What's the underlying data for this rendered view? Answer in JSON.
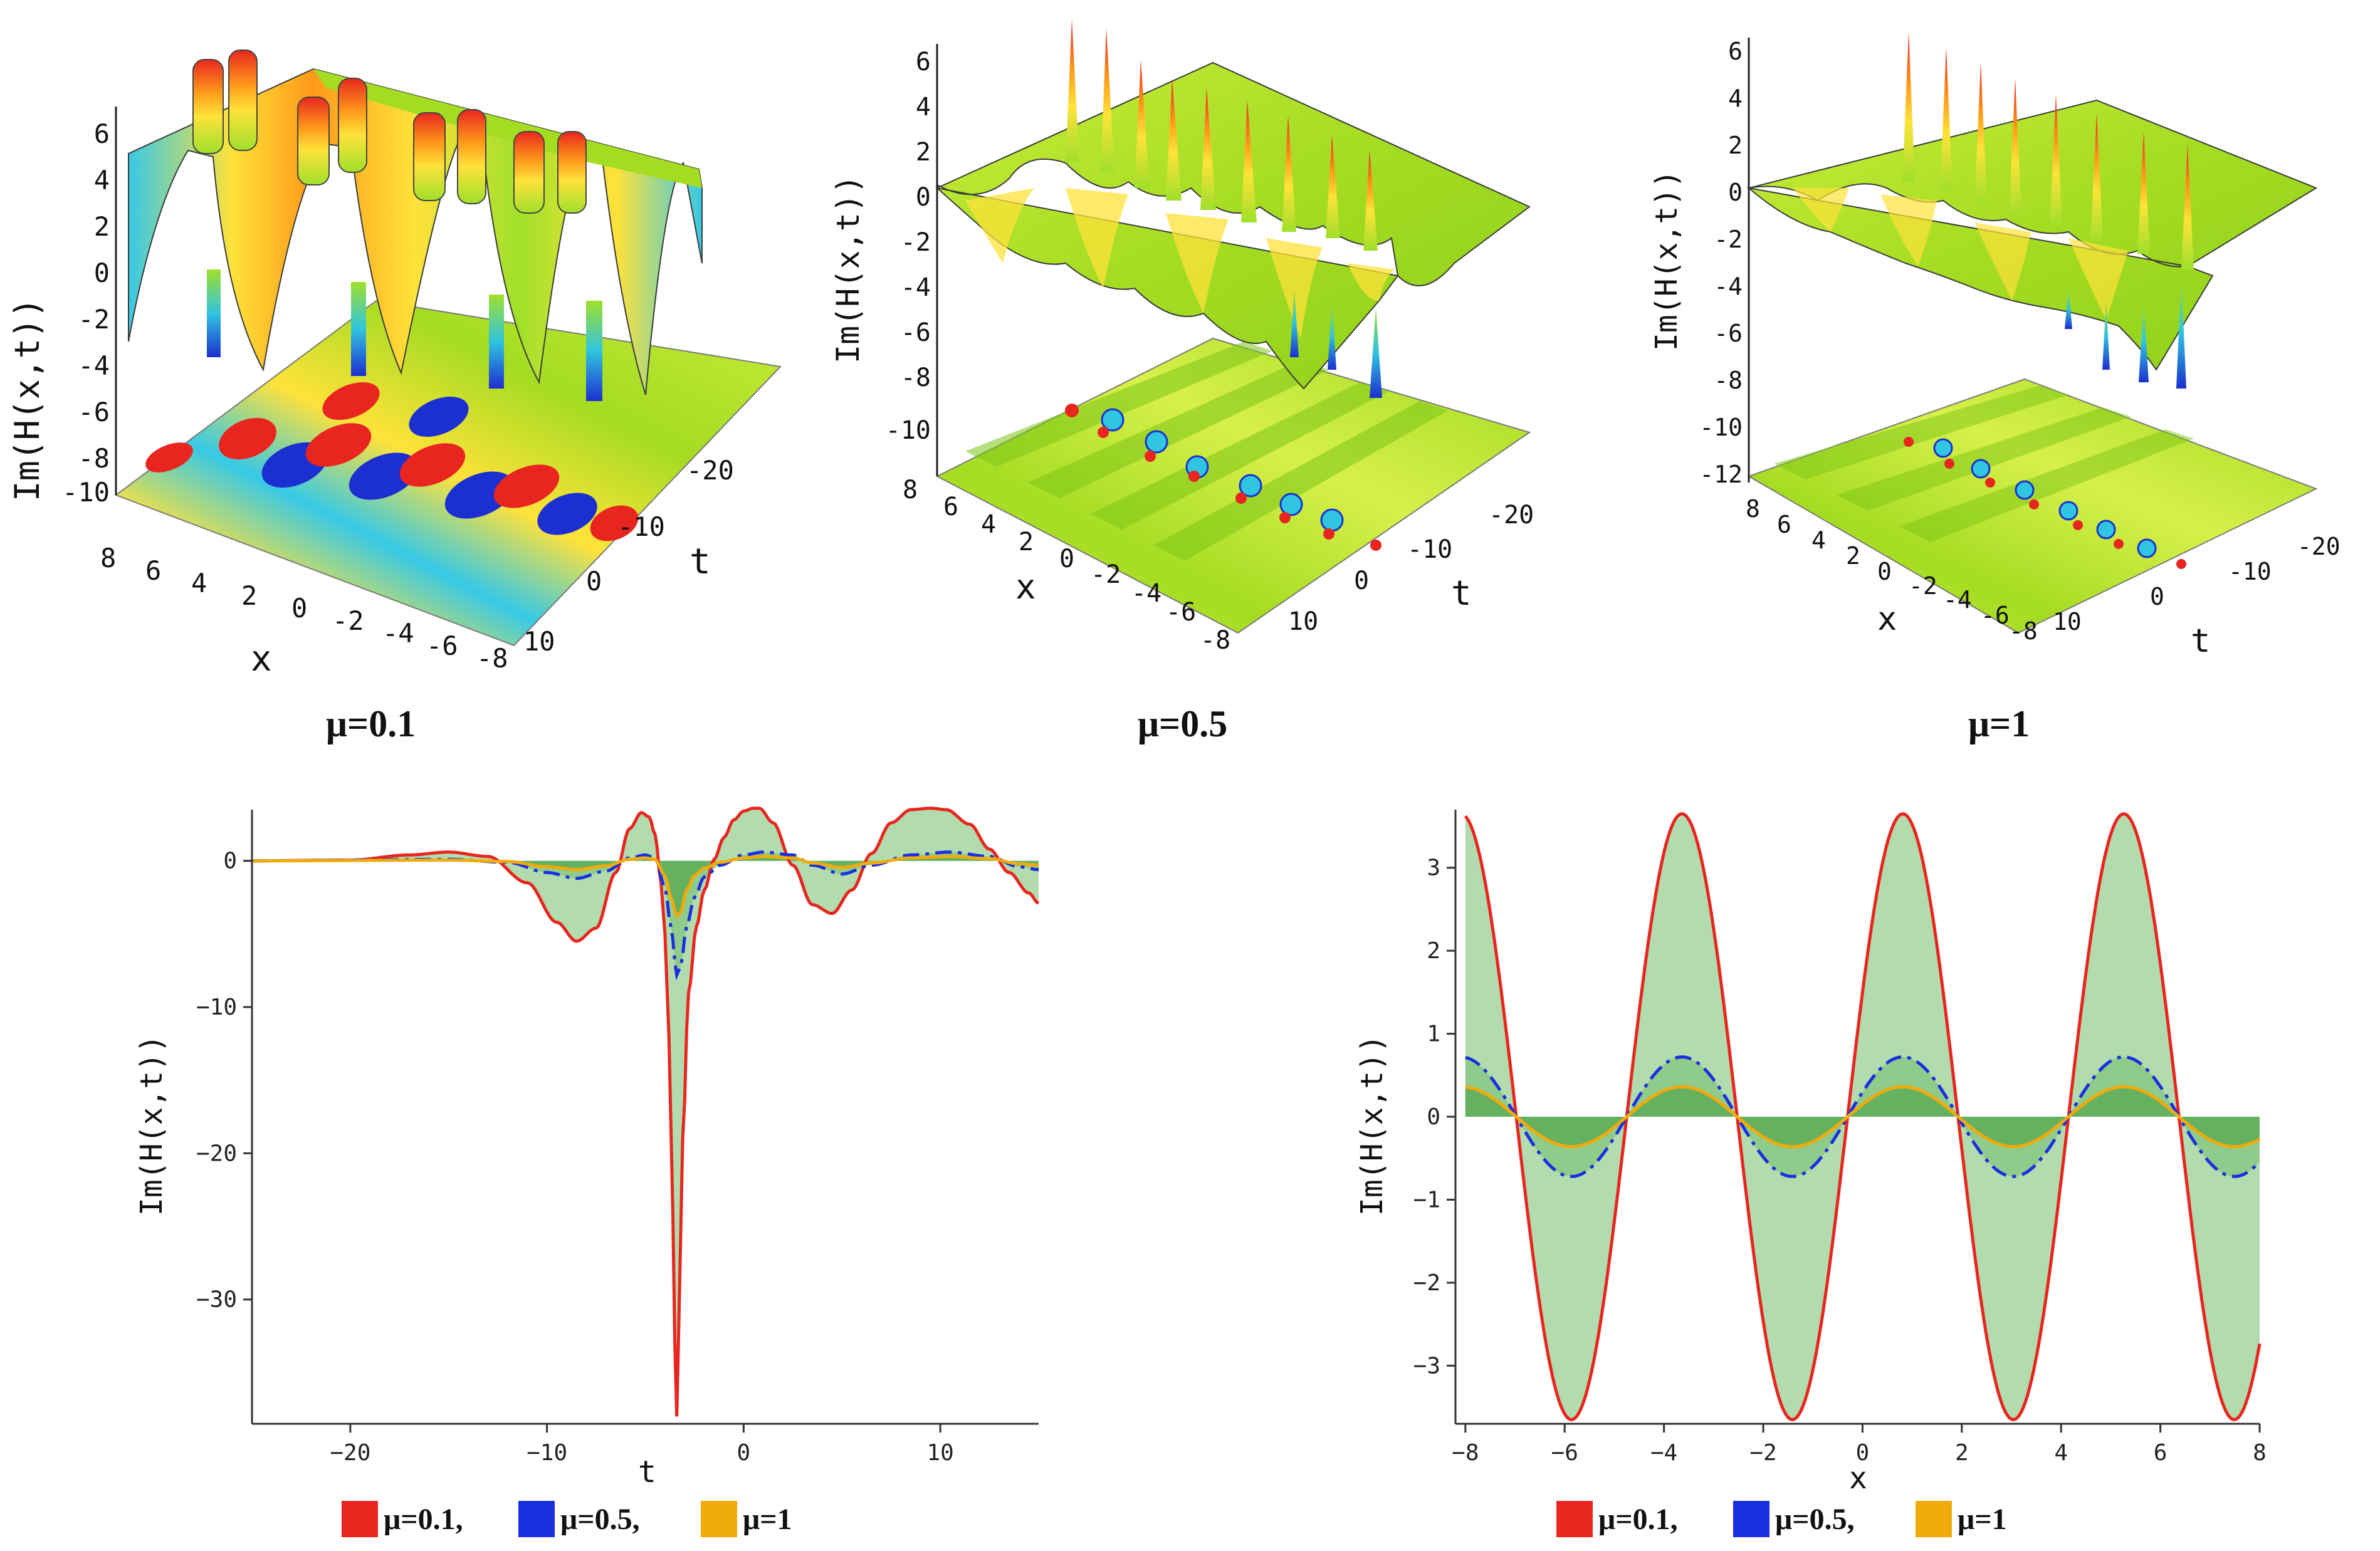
{
  "chart_data": [
    {
      "type": "surface3d",
      "id": "surf-mu01",
      "caption": "μ=0.1",
      "zlabel": "Im(H(x,t))",
      "xlabel": "x",
      "tlabel": "t",
      "z_ticks": [
        "6",
        "4",
        "2",
        "0",
        "-2",
        "-4",
        "-6",
        "-8",
        "-10"
      ],
      "x_ticks": [
        "8",
        "6",
        "4",
        "2",
        "0",
        "-2",
        "-4",
        "-6",
        "-8"
      ],
      "t_ticks": [
        "-20",
        "-10",
        "0",
        "10"
      ]
    },
    {
      "type": "surface3d",
      "id": "surf-mu05",
      "caption": "μ=0.5",
      "zlabel": "Im(H(x,t))",
      "xlabel": "x",
      "tlabel": "t",
      "z_ticks": [
        "6",
        "4",
        "2",
        "0",
        "-2",
        "-4",
        "-6",
        "-8",
        "-10"
      ],
      "x_ticks": [
        "8",
        "6",
        "4",
        "2",
        "0",
        "-2",
        "-4",
        "-6",
        "-8"
      ],
      "t_ticks": [
        "-20",
        "-10",
        "0",
        "10"
      ]
    },
    {
      "type": "surface3d",
      "id": "surf-mu1",
      "caption": "μ=1",
      "zlabel": "Im(H(x,t))",
      "xlabel": "x",
      "tlabel": "t",
      "z_ticks": [
        "6",
        "4",
        "2",
        "0",
        "-2",
        "-4",
        "-6",
        "-8",
        "-10",
        "-12"
      ],
      "x_ticks": [
        "8",
        "6",
        "4",
        "2",
        "0",
        "-2",
        "-4",
        "-6",
        "-8"
      ],
      "t_ticks": [
        "-20",
        "-10",
        "0",
        "10"
      ]
    },
    {
      "type": "line",
      "id": "line-t",
      "xlabel": "t",
      "ylabel": "Im(H(x,t))",
      "xlim": [
        -25,
        15
      ],
      "ylim": [
        -38.5,
        3.5
      ],
      "x_ticks": [
        -20,
        -10,
        0,
        10
      ],
      "y_ticks": [
        0,
        -10,
        -20,
        -30
      ],
      "fill": "area between curves and zero",
      "series": [
        {
          "name": "μ=0.1",
          "color": "#e8261f",
          "style": "solid",
          "x": [
            -25,
            -20,
            -17,
            -15,
            -13,
            -11,
            -9.5,
            -8.5,
            -7.5,
            -6.5,
            -5.8,
            -5.2,
            -4.8,
            -4.5,
            -4.2,
            -4.0,
            -3.8,
            -3.6,
            -3.5,
            -3.4,
            -3.3,
            -3.1,
            -2.8,
            -2.4,
            -2.0,
            -1.5,
            -1.0,
            -0.5,
            0,
            0.5,
            0.8,
            1.5,
            2.5,
            3.5,
            4.5,
            5.5,
            6.5,
            7.5,
            8.5,
            9.5,
            10.3,
            11.5,
            12.5,
            13.5,
            14.5,
            15
          ],
          "y": [
            0,
            0.05,
            0.4,
            0.6,
            0.3,
            -1.5,
            -4.2,
            -5.5,
            -4.6,
            -0.8,
            2.2,
            3.3,
            3.0,
            1.8,
            -1.5,
            -5,
            -12,
            -24,
            -33,
            -38,
            -32,
            -19,
            -9,
            -4.5,
            -2,
            0.1,
            1.6,
            2.8,
            3.4,
            3.6,
            3.6,
            2.6,
            -0.3,
            -3.0,
            -3.6,
            -2.0,
            0.5,
            2.6,
            3.5,
            3.6,
            3.5,
            2.5,
            0.8,
            -0.8,
            -2.2,
            -2.9
          ]
        },
        {
          "name": "μ=0.5",
          "color": "#1a2fe0",
          "style": "dash-dot",
          "x": [
            -25,
            -15,
            -12,
            -10,
            -8.5,
            -7,
            -5.8,
            -5,
            -4.5,
            -4.0,
            -3.7,
            -3.4,
            -3.2,
            -2.9,
            -2.5,
            -2,
            -1.2,
            0,
            1,
            2.5,
            3.5,
            5,
            6.5,
            8.5,
            10.5,
            12.5,
            14,
            15
          ],
          "y": [
            0,
            0.1,
            -0.1,
            -0.8,
            -1.2,
            -0.7,
            0.2,
            0.4,
            0.2,
            -1.8,
            -4.5,
            -7.8,
            -7.2,
            -4.5,
            -2.5,
            -1.1,
            -0.3,
            0.4,
            0.6,
            0.4,
            -0.3,
            -0.9,
            -0.3,
            0.4,
            0.6,
            0.3,
            -0.4,
            -0.6
          ]
        },
        {
          "name": "μ=1",
          "color": "#f0ab0b",
          "style": "solid",
          "x": [
            -25,
            -15,
            -12,
            -10,
            -8.5,
            -7,
            -5.8,
            -5,
            -4.5,
            -4.0,
            -3.7,
            -3.4,
            -3.2,
            -2.9,
            -2.5,
            -2,
            -1.2,
            0,
            1,
            2.5,
            3.5,
            5,
            6.5,
            8.5,
            10.5,
            12.5,
            14,
            15
          ],
          "y": [
            0,
            0.05,
            -0.05,
            -0.4,
            -0.6,
            -0.35,
            0.1,
            0.2,
            0.1,
            -1.0,
            -2.5,
            -3.8,
            -3.5,
            -2.0,
            -1.0,
            -0.5,
            -0.1,
            0.2,
            0.3,
            0.2,
            -0.15,
            -0.45,
            -0.15,
            0.2,
            0.3,
            0.15,
            -0.2,
            -0.3
          ]
        }
      ]
    },
    {
      "type": "line",
      "id": "line-x",
      "xlabel": "x",
      "ylabel": "Im(H(x,t))",
      "xlim": [
        -8.2,
        8.0
      ],
      "ylim": [
        -3.7,
        3.7
      ],
      "x_ticks": [
        -8,
        -6,
        -4,
        -2,
        0,
        2,
        4,
        6,
        8
      ],
      "y_ticks": [
        3,
        2,
        1,
        0,
        -1,
        -2,
        -3
      ],
      "fill": "area between curves and zero",
      "series": [
        {
          "name": "μ=0.1",
          "color": "#e8261f",
          "style": "solid",
          "amplitude": 3.65,
          "period": 4.45,
          "phase_x0": -0.3,
          "x_start": -8.0
        },
        {
          "name": "μ=0.5",
          "color": "#1a2fe0",
          "style": "dash-dot",
          "amplitude": 0.72,
          "period": 4.45,
          "phase_x0": -0.3,
          "x_start": -8.0
        },
        {
          "name": "μ=1",
          "color": "#f0ab0b",
          "style": "solid",
          "amplitude": 0.36,
          "period": 4.45,
          "phase_x0": -0.3,
          "x_start": -8.0
        }
      ]
    }
  ],
  "legend": {
    "items": [
      {
        "label": "μ=0.1,",
        "color": "#e8261f"
      },
      {
        "label": "μ=0.5,",
        "color": "#1a2fe0"
      },
      {
        "label": "μ=1",
        "color": "#f0ab0b"
      }
    ]
  }
}
